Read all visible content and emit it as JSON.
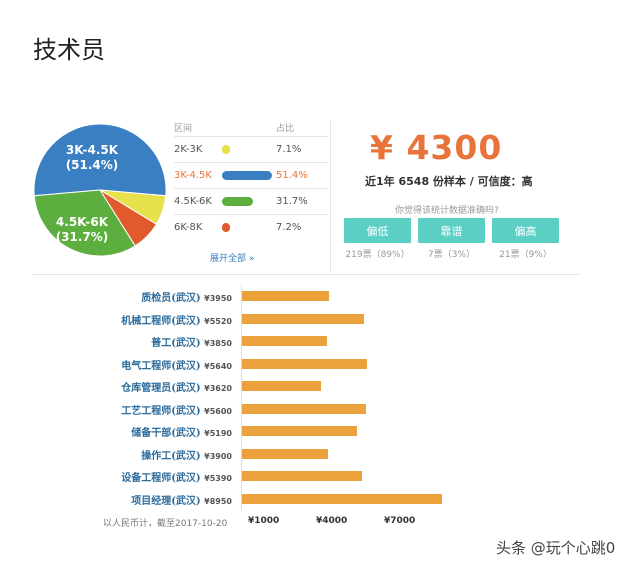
{
  "page_title": "技术员",
  "distribution": {
    "header_range": "区间",
    "header_pct": "占比",
    "rows": [
      {
        "range": "2K-3K",
        "pct": "7.1%",
        "value": 7.1,
        "color": "#e6e04a",
        "active": false
      },
      {
        "range": "3K-4.5K",
        "pct": "51.4%",
        "value": 51.4,
        "color": "#3a7fc1",
        "active": true
      },
      {
        "range": "4.5K-6K",
        "pct": "31.7%",
        "value": 31.7,
        "color": "#5cae3f",
        "active": false
      },
      {
        "range": "6K-8K",
        "pct": "7.2%",
        "value": 7.2,
        "color": "#e05a2b",
        "active": false
      }
    ],
    "expand_link": "展开全部 »",
    "pie_label_big": {
      "range": "3K-4.5K",
      "pct": "(51.4%)"
    },
    "pie_label_second": {
      "range": "4.5K-6K",
      "pct": "(31.7%)"
    }
  },
  "summary": {
    "salary": "¥ 4300",
    "sample_text": "近1年 6548 份样本 / 可信度：高",
    "question": "你觉得该统计数据准确吗?",
    "votes": [
      {
        "label": "偏低",
        "count": "219票（89%）"
      },
      {
        "label": "靠谱",
        "count": "7票（3%）"
      },
      {
        "label": "偏高",
        "count": "21票（9%）"
      }
    ]
  },
  "chart_data": {
    "type": "bar",
    "orientation": "horizontal",
    "categories": [
      "质检员(武汉)",
      "机械工程师(武汉)",
      "普工(武汉)",
      "电气工程师(武汉)",
      "仓库管理员(武汉)",
      "工艺工程师(武汉)",
      "储备干部(武汉)",
      "操作工(武汉)",
      "设备工程师(武汉)",
      "项目经理(武汉)"
    ],
    "value_labels": [
      "¥3950",
      "¥5520",
      "¥3850",
      "¥5640",
      "¥3620",
      "¥5600",
      "¥5190",
      "¥3900",
      "¥5390",
      "¥8950"
    ],
    "values": [
      3950,
      5520,
      3850,
      5640,
      3620,
      5600,
      5190,
      3900,
      5390,
      8950
    ],
    "xticks": [
      "¥1000",
      "¥4000",
      "¥7000"
    ],
    "xtick_values": [
      1000,
      4000,
      7000
    ],
    "note": "以人民币计，截至2017-10-20",
    "bar_color": "#eba13c"
  },
  "watermark": "头条 @玩个心跳0"
}
